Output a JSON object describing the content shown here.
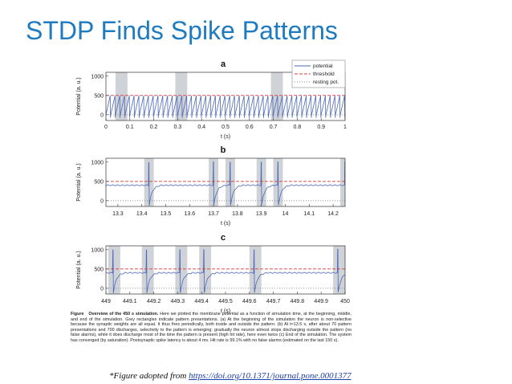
{
  "slide": {
    "title": "STDP Finds Spike Patterns"
  },
  "legend": {
    "potential": "potential",
    "threshold": "threshold",
    "resting": "resting pot."
  },
  "colors": {
    "potential": "#4a67b8",
    "threshold": "#d43b3b",
    "resting": "#8a8a8a",
    "pattern": "#cfd2d6",
    "title": "#1f7bbf"
  },
  "caption": {
    "label": "Figure",
    "heading": "Overview of the 450 s simulation.",
    "body": "Here we plotted the membrane potential as a function of simulation time, at the beginning, middle, and end of the simulation. Grey rectangles indicate pattern presentations. (a) At the beginning of the simulation the neuron is non-selective because the synaptic weights are all equal. It thus fires periodically, both inside and outside the pattern. (b) At t≈13.5 s, after about 70 pattern presentations and 700 discharges, selectivity to the pattern is emerging: gradually the neuron almost stops discharging outside the pattern (no false alarms), while it does discharge most of the time the pattern is present (high hit rate), here even twice (c) End of the simulation. The system has converged (by saturation). Postsynaptic spike latency is about 4 ms. Hit rate is 99.1% with no false alarms (estimated on the last 150 s)."
  },
  "credit": {
    "prefix": "*Figure adopted from ",
    "link": "https://doi.org/10.1371/journal.pone.0001377"
  },
  "chart_data": [
    {
      "panel": "a",
      "type": "line",
      "xlabel": "t (s)",
      "ylabel": "Potential (a. u.)",
      "xlim": [
        0,
        1
      ],
      "ylim": [
        -150,
        1100
      ],
      "xticks": [
        "0",
        "0.1",
        "0.2",
        "0.3",
        "0.4",
        "0.5",
        "0.6",
        "0.7",
        "0.8",
        "0.9",
        "1"
      ],
      "yticks": [
        "0",
        "500",
        "1000"
      ],
      "threshold": 500,
      "resting": 0,
      "pattern_windows": [
        [
          0.04,
          0.09
        ],
        [
          0.29,
          0.34
        ],
        [
          0.69,
          0.74
        ]
      ],
      "spike_interval_s": 0.02
    },
    {
      "panel": "b",
      "type": "line",
      "xlabel": "t (s)",
      "ylabel": "Potential (a. u.)",
      "xlim": [
        13.25,
        14.25
      ],
      "ylim": [
        -150,
        1100
      ],
      "xticks": [
        "13.3",
        "13.4",
        "13.5",
        "13.6",
        "13.7",
        "13.8",
        "13.9",
        "14",
        "14.1",
        "14.2"
      ],
      "yticks": [
        "0",
        "500",
        "1000"
      ],
      "threshold": 500,
      "resting": 0,
      "pattern_windows": [
        [
          13.41,
          13.45
        ],
        [
          13.68,
          13.72
        ],
        [
          13.75,
          13.79
        ],
        [
          13.88,
          13.92
        ],
        [
          13.95,
          13.99
        ],
        [
          14.23,
          14.27
        ]
      ]
    },
    {
      "panel": "c",
      "type": "line",
      "xlabel": "t (s)",
      "ylabel": "Potential (a. u.)",
      "xlim": [
        449,
        450
      ],
      "ylim": [
        -150,
        1100
      ],
      "xticks": [
        "449",
        "449.1",
        "449.2",
        "449.3",
        "449.4",
        "449.5",
        "449.6",
        "449.7",
        "449.8",
        "449.9",
        "450"
      ],
      "yticks": [
        "0",
        "500",
        "1000"
      ],
      "threshold": 500,
      "resting": 0,
      "pattern_windows": [
        [
          449.01,
          449.06
        ],
        [
          449.15,
          449.2
        ],
        [
          449.29,
          449.34
        ],
        [
          449.39,
          449.44
        ],
        [
          449.6,
          449.65
        ],
        [
          449.95,
          450.0
        ]
      ]
    }
  ]
}
